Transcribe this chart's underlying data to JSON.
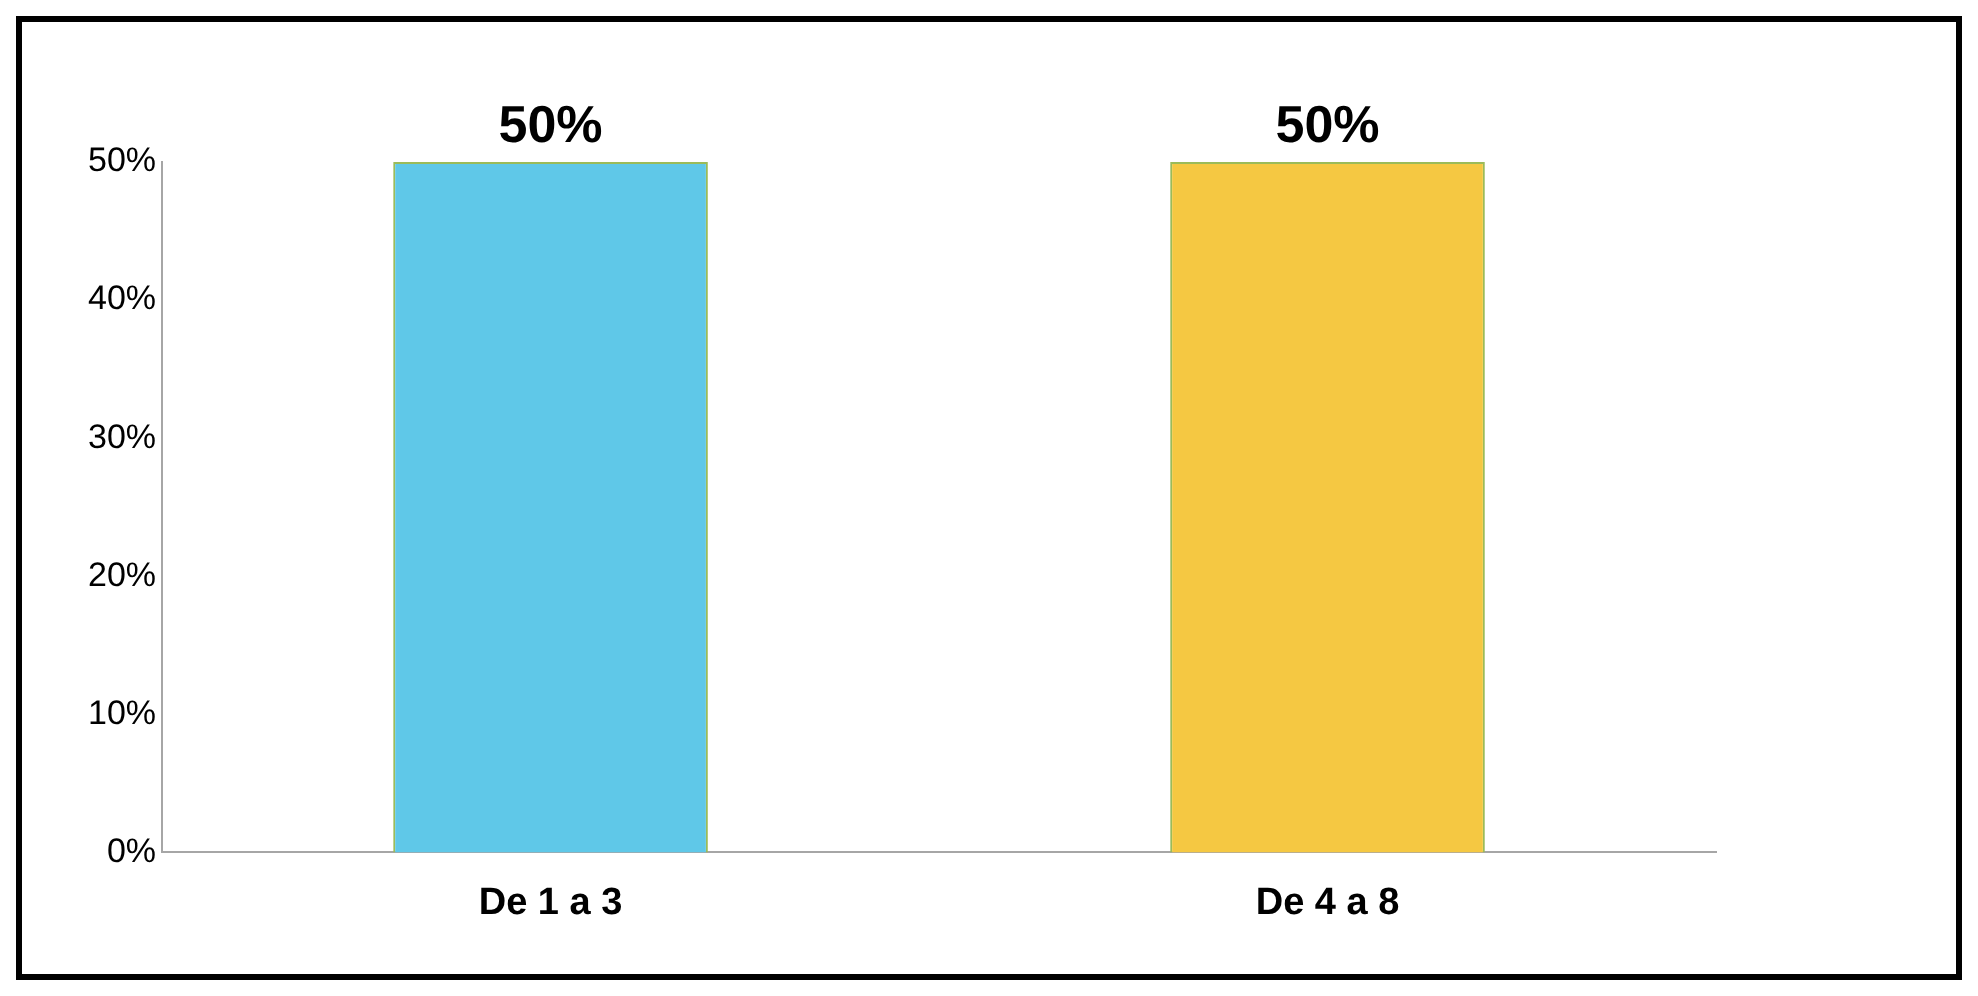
{
  "chart_data": {
    "type": "bar",
    "categories": [
      "De 1 a 3",
      "De 4 a 8"
    ],
    "values": [
      50,
      50
    ],
    "colors": [
      "#5fc8e8",
      "#f5c842"
    ],
    "value_labels": [
      "50%",
      "50%"
    ],
    "ylim": [
      0,
      50
    ],
    "yticks": [
      {
        "value": 0,
        "label": "0%"
      },
      {
        "value": 10,
        "label": "10%"
      },
      {
        "value": 20,
        "label": "20%"
      },
      {
        "value": 30,
        "label": "30%"
      },
      {
        "value": 40,
        "label": "40%"
      },
      {
        "value": 50,
        "label": "50%"
      }
    ],
    "grid": false,
    "legend": false
  }
}
